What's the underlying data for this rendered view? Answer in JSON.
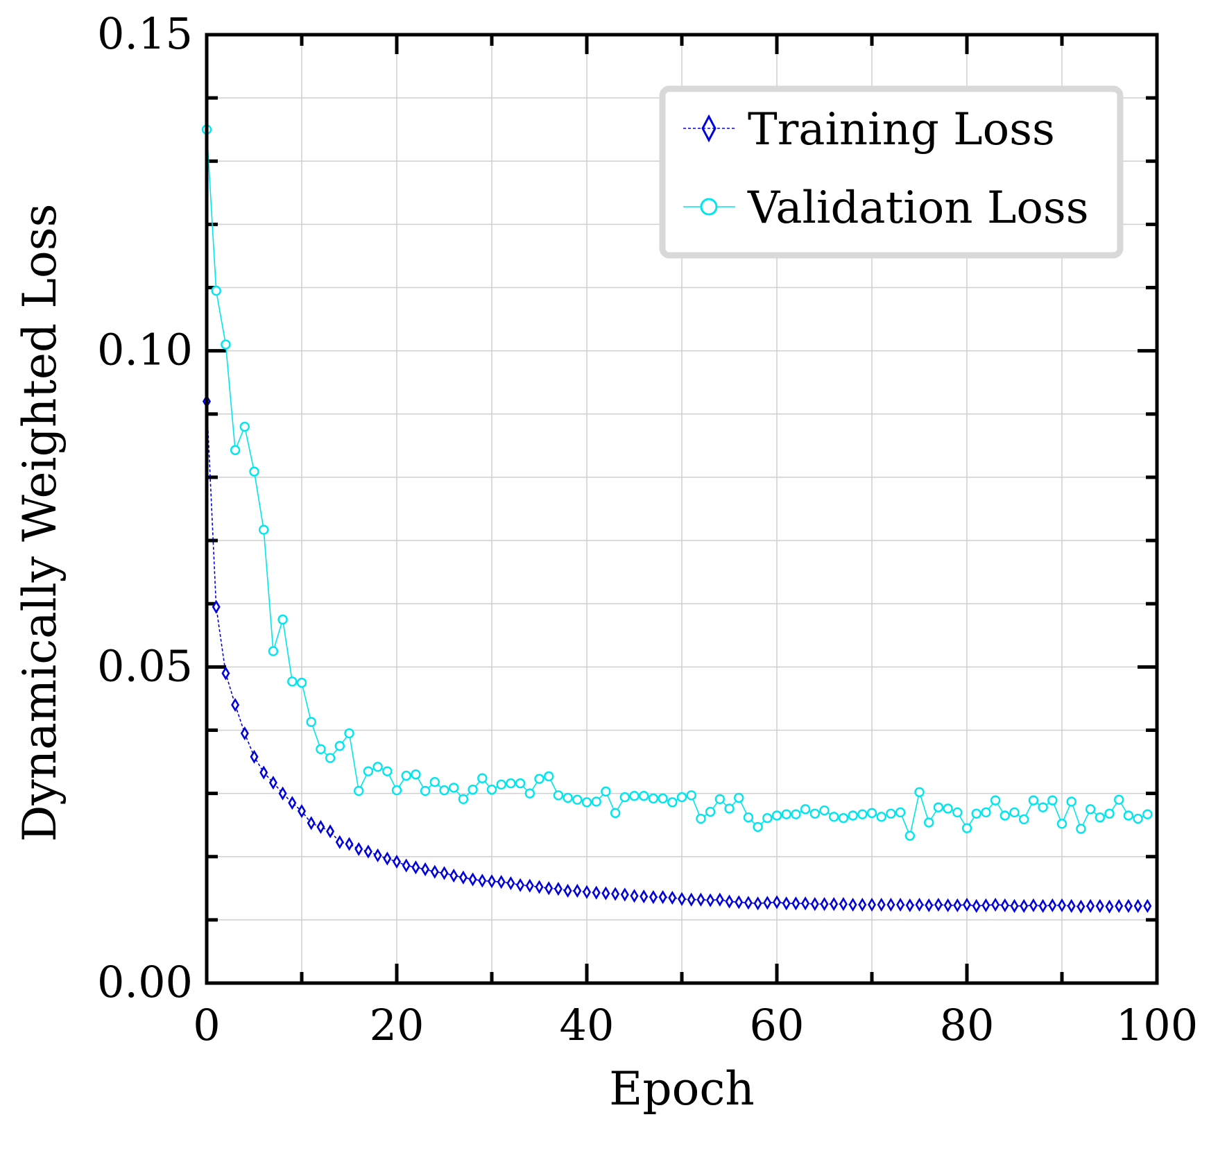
{
  "chart_data": {
    "type": "line",
    "title": "",
    "xlabel": "Epoch",
    "ylabel": "Dynamically Weighted Loss",
    "xlim": [
      0,
      100
    ],
    "ylim": [
      0,
      0.15
    ],
    "x_ticks": [
      0,
      20,
      40,
      60,
      80,
      100
    ],
    "x_tick_labels": [
      "0",
      "20",
      "40",
      "60",
      "80",
      "100"
    ],
    "y_ticks": [
      0,
      0.05,
      0.1,
      0.15
    ],
    "y_tick_labels": [
      "0.00",
      "0.05",
      "0.10",
      "0.15"
    ],
    "grid": true,
    "legend_position": "top-right",
    "series": [
      {
        "name": "Training Loss",
        "color": "#0000dd",
        "marker": "diamond",
        "line_style": "dashed",
        "x": [
          0,
          1,
          2,
          3,
          4,
          5,
          6,
          7,
          8,
          9,
          10,
          11,
          12,
          13,
          14,
          15,
          16,
          17,
          18,
          19,
          20,
          21,
          22,
          23,
          24,
          25,
          26,
          27,
          28,
          29,
          30,
          31,
          32,
          33,
          34,
          35,
          36,
          37,
          38,
          39,
          40,
          41,
          42,
          43,
          44,
          45,
          46,
          47,
          48,
          49,
          50,
          51,
          52,
          53,
          54,
          55,
          56,
          57,
          58,
          59,
          60,
          61,
          62,
          63,
          64,
          65,
          66,
          67,
          68,
          69,
          70,
          71,
          72,
          73,
          74,
          75,
          76,
          77,
          78,
          79,
          80,
          81,
          82,
          83,
          84,
          85,
          86,
          87,
          88,
          89,
          90,
          91,
          92,
          93,
          94,
          95,
          96,
          97,
          98,
          99
        ],
        "values": [
          0.092,
          0.0595,
          0.049,
          0.044,
          0.0395,
          0.0358,
          0.0333,
          0.0317,
          0.03,
          0.0285,
          0.0272,
          0.0253,
          0.0247,
          0.024,
          0.0223,
          0.022,
          0.0212,
          0.0208,
          0.0202,
          0.0197,
          0.0192,
          0.0186,
          0.0183,
          0.018,
          0.0176,
          0.0174,
          0.017,
          0.0167,
          0.0164,
          0.0162,
          0.0161,
          0.016,
          0.0158,
          0.0155,
          0.0154,
          0.0152,
          0.015,
          0.0149,
          0.0146,
          0.0146,
          0.0144,
          0.0143,
          0.0142,
          0.0141,
          0.014,
          0.0138,
          0.0137,
          0.0136,
          0.0136,
          0.0135,
          0.0133,
          0.0132,
          0.0132,
          0.0131,
          0.0132,
          0.0129,
          0.0128,
          0.0127,
          0.0126,
          0.0127,
          0.0128,
          0.0126,
          0.0126,
          0.0126,
          0.0125,
          0.0125,
          0.0125,
          0.0125,
          0.0124,
          0.0124,
          0.0124,
          0.0124,
          0.0124,
          0.0124,
          0.0123,
          0.0124,
          0.0123,
          0.0124,
          0.0123,
          0.0123,
          0.0124,
          0.0122,
          0.0123,
          0.0124,
          0.0123,
          0.0122,
          0.0122,
          0.0123,
          0.0122,
          0.0123,
          0.0123,
          0.0122,
          0.0121,
          0.0122,
          0.0122,
          0.0121,
          0.0122,
          0.0122,
          0.0122,
          0.0122
        ]
      },
      {
        "name": "Validation Loss",
        "color": "#00e5ee",
        "marker": "circle",
        "line_style": "solid",
        "x": [
          0,
          1,
          2,
          3,
          4,
          5,
          6,
          7,
          8,
          9,
          10,
          11,
          12,
          13,
          14,
          15,
          16,
          17,
          18,
          19,
          20,
          21,
          22,
          23,
          24,
          25,
          26,
          27,
          28,
          29,
          30,
          31,
          32,
          33,
          34,
          35,
          36,
          37,
          38,
          39,
          40,
          41,
          42,
          43,
          44,
          45,
          46,
          47,
          48,
          49,
          50,
          51,
          52,
          53,
          54,
          55,
          56,
          57,
          58,
          59,
          60,
          61,
          62,
          63,
          64,
          65,
          66,
          67,
          68,
          69,
          70,
          71,
          72,
          73,
          74,
          75,
          76,
          77,
          78,
          79,
          80,
          81,
          82,
          83,
          84,
          85,
          86,
          87,
          88,
          89,
          90,
          91,
          92,
          93,
          94,
          95,
          96,
          97,
          98,
          99
        ],
        "values": [
          0.135,
          0.1095,
          0.101,
          0.0843,
          0.088,
          0.0809,
          0.0717,
          0.0525,
          0.0575,
          0.0477,
          0.0475,
          0.0413,
          0.037,
          0.0356,
          0.0375,
          0.0395,
          0.0304,
          0.0335,
          0.0342,
          0.0335,
          0.0305,
          0.0328,
          0.033,
          0.0304,
          0.0318,
          0.0305,
          0.0309,
          0.0291,
          0.0306,
          0.0324,
          0.0306,
          0.0314,
          0.0316,
          0.0316,
          0.03,
          0.0323,
          0.0327,
          0.0297,
          0.0293,
          0.029,
          0.0286,
          0.0287,
          0.0303,
          0.0269,
          0.0294,
          0.0296,
          0.0296,
          0.0292,
          0.0292,
          0.0286,
          0.0294,
          0.0297,
          0.026,
          0.0271,
          0.0291,
          0.0276,
          0.0293,
          0.0262,
          0.0247,
          0.0261,
          0.0265,
          0.0267,
          0.0267,
          0.0275,
          0.0268,
          0.0273,
          0.0263,
          0.0261,
          0.0265,
          0.0267,
          0.0269,
          0.0263,
          0.0268,
          0.027,
          0.0233,
          0.0302,
          0.0254,
          0.0278,
          0.0276,
          0.027,
          0.0245,
          0.0268,
          0.027,
          0.0289,
          0.0265,
          0.027,
          0.0259,
          0.0289,
          0.0278,
          0.0289,
          0.0252,
          0.0287,
          0.0244,
          0.0275,
          0.0262,
          0.0268,
          0.029,
          0.0265,
          0.026,
          0.0267
        ]
      }
    ]
  }
}
